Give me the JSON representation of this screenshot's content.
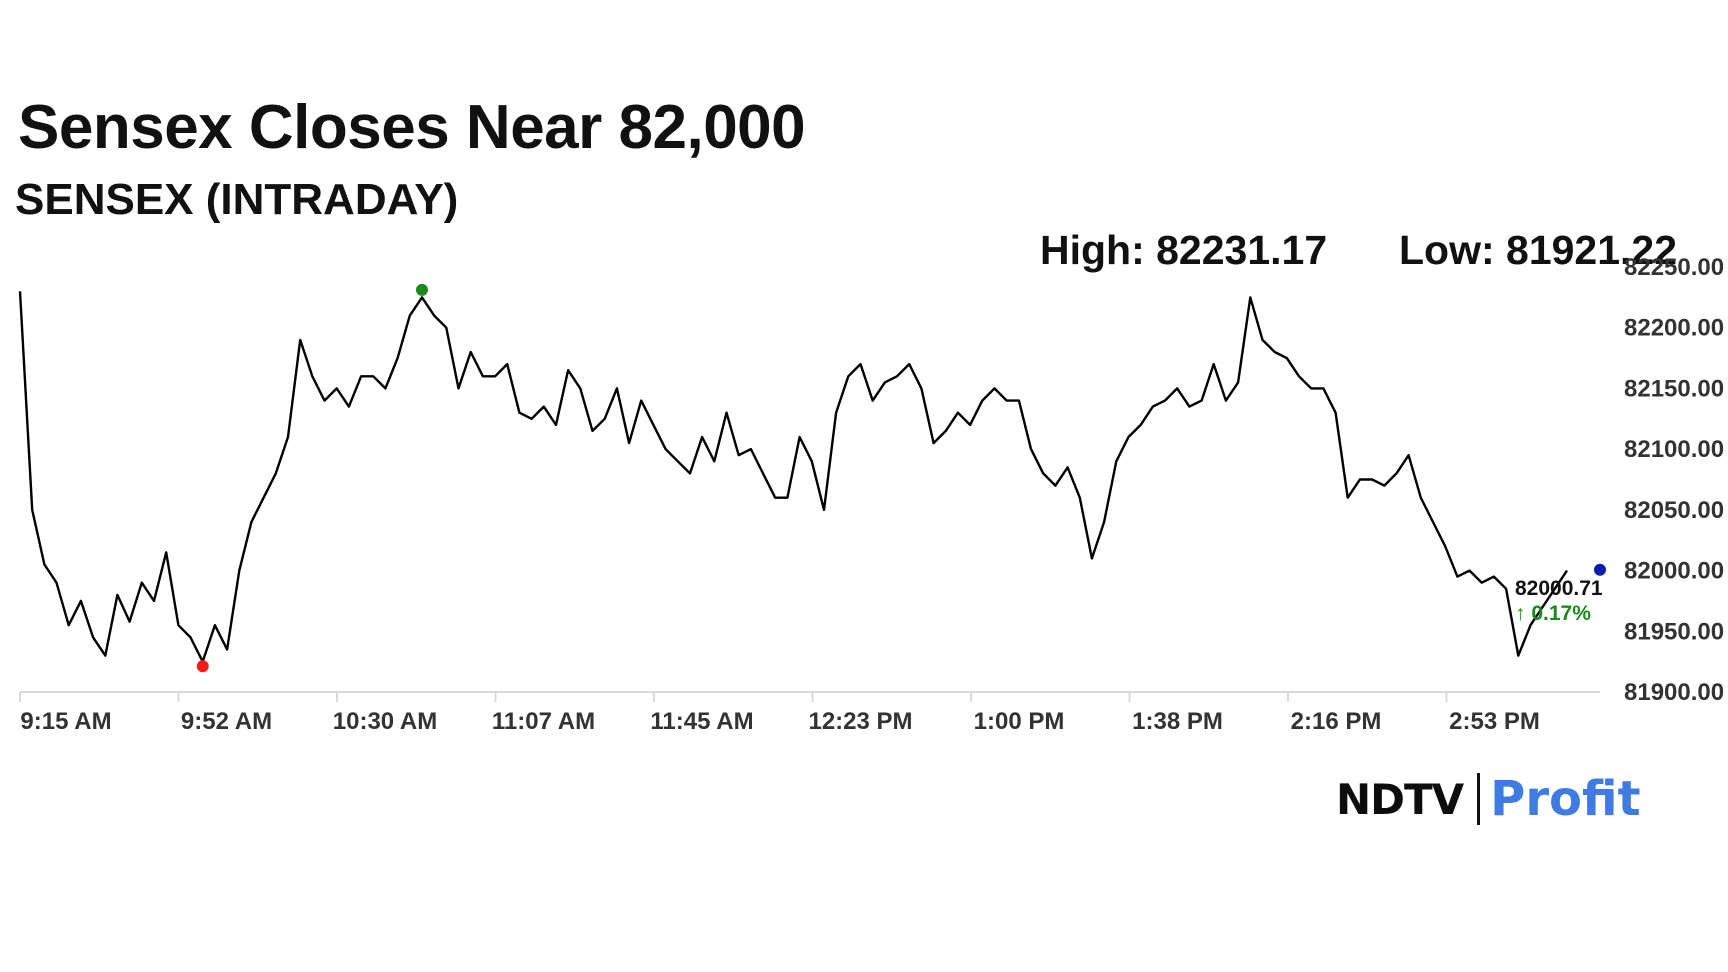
{
  "headline": "Sensex Closes Near 82,000",
  "subtitle": "SENSEX (INTRADAY)",
  "high_label": "High: 82231.17",
  "low_label": "Low: 81921.22",
  "last_price": "82000.71",
  "change": "0.17%",
  "change_arrow": "↑",
  "logo": {
    "brand": "NDTV",
    "product": "Profit"
  },
  "colors": {
    "line": "#000000",
    "high_dot": "#1a8a1a",
    "low_dot": "#ff1a1a",
    "last_dot": "#0a1fa8",
    "change": "#1a8a1a",
    "axis": "#d9d9d9"
  },
  "chart_data": {
    "type": "line",
    "title": "SENSEX (INTRADAY)",
    "xlabel": "",
    "ylabel": "",
    "ylim": [
      81900,
      82250
    ],
    "y_ticks": [
      "82250.00",
      "82200.00",
      "82150.00",
      "82100.00",
      "82050.00",
      "82000.00",
      "81950.00",
      "81900.00"
    ],
    "x_ticks": [
      "9:15 AM",
      "9:52 AM",
      "10:30 AM",
      "11:07 AM",
      "11:45 AM",
      "12:23 PM",
      "1:00 PM",
      "1:38 PM",
      "2:16 PM",
      "2:53 PM"
    ],
    "grid": false,
    "series": [
      {
        "x": [
          "9:15 AM",
          "9:16 AM",
          "9:18 AM",
          "9:20 AM",
          "9:22 AM",
          "9:24 AM",
          "9:26 AM",
          "9:28 AM",
          "9:30 AM",
          "9:32 AM",
          "9:34 AM",
          "9:36 AM",
          "9:38 AM",
          "9:40 AM",
          "9:42 AM",
          "9:44 AM",
          "9:46 AM",
          "9:48 AM",
          "9:50 AM",
          "9:52 AM",
          "9:54 AM",
          "9:56 AM",
          "9:58 AM",
          "10:00 AM",
          "10:02 AM",
          "10:04 AM",
          "10:06 AM",
          "10:08 AM",
          "10:10 AM",
          "10:12 AM",
          "10:14 AM",
          "10:16 AM",
          "10:18 AM",
          "10:20 AM",
          "10:22 AM",
          "10:24 AM",
          "10:26 AM",
          "10:28 AM",
          "10:30 AM",
          "10:33 AM",
          "10:36 AM",
          "10:39 AM",
          "10:42 AM",
          "10:45 AM",
          "10:48 AM",
          "10:51 AM",
          "10:54 AM",
          "10:57 AM",
          "11:00 AM",
          "11:03 AM",
          "11:07 AM",
          "11:12 AM",
          "11:17 AM",
          "11:22 AM",
          "11:27 AM",
          "11:32 AM",
          "11:37 AM",
          "11:42 AM",
          "11:45 AM",
          "11:50 AM",
          "11:55 AM",
          "12:00 PM",
          "12:05 PM",
          "12:10 PM",
          "12:15 PM",
          "12:20 PM",
          "12:23 PM",
          "12:25 PM",
          "12:28 PM",
          "12:31 PM",
          "12:34 PM",
          "12:37 PM",
          "12:40 PM",
          "12:43 PM",
          "12:46 PM",
          "12:49 PM",
          "12:52 PM",
          "12:55 PM",
          "1:00 PM",
          "1:04 PM",
          "1:08 PM",
          "1:12 PM",
          "1:16 PM",
          "1:20 PM",
          "1:24 PM",
          "1:28 PM",
          "1:32 PM",
          "1:35 PM",
          "1:38 PM",
          "1:41 PM",
          "1:44 PM",
          "1:47 PM",
          "1:50 PM",
          "1:53 PM",
          "1:56 PM",
          "1:59 PM",
          "2:02 PM",
          "2:05 PM",
          "2:08 PM",
          "2:11 PM",
          "2:14 PM",
          "2:16 PM",
          "2:18 PM",
          "2:20 PM",
          "2:23 PM",
          "2:26 PM",
          "2:29 PM",
          "2:32 PM",
          "2:35 PM",
          "2:38 PM",
          "2:41 PM",
          "2:44 PM",
          "2:47 PM",
          "2:50 PM",
          "2:53 PM",
          "2:56 PM",
          "2:59 PM",
          "3:02 PM",
          "3:05 PM",
          "3:08 PM",
          "3:11 PM",
          "3:14 PM",
          "3:17 PM",
          "3:20 PM",
          "3:23 PM",
          "3:26 PM",
          "3:29 PM",
          "3:30 PM"
        ],
        "values": [
          82230,
          82050,
          82005,
          81990,
          81955,
          81975,
          81945,
          81930,
          81980,
          81958,
          81990,
          81975,
          82015,
          81955,
          81945,
          81925,
          81955,
          81935,
          82000,
          82040,
          82060,
          82080,
          82110,
          82190,
          82160,
          82140,
          82150,
          82135,
          82160,
          82160,
          82150,
          82175,
          82210,
          82225,
          82210,
          82200,
          82150,
          82180,
          82160,
          82160,
          82170,
          82130,
          82125,
          82135,
          82120,
          82165,
          82150,
          82115,
          82125,
          82150,
          82105,
          82140,
          82120,
          82100,
          82090,
          82080,
          82110,
          82090,
          82130,
          82095,
          82100,
          82080,
          82060,
          82060,
          82110,
          82090,
          82050,
          82130,
          82160,
          82170,
          82140,
          82155,
          82160,
          82170,
          82150,
          82105,
          82115,
          82130,
          82120,
          82140,
          82150,
          82140,
          82140,
          82100,
          82080,
          82070,
          82085,
          82060,
          82010,
          82040,
          82090,
          82110,
          82120,
          82135,
          82140,
          82150,
          82135,
          82140,
          82170,
          82140,
          82155,
          82225,
          82190,
          82180,
          82175,
          82160,
          82150,
          82150,
          82130,
          82060,
          82075,
          82075,
          82070,
          82080,
          82095,
          82060,
          82040,
          82020,
          81995,
          82000,
          81990,
          81995,
          81985,
          81930,
          81955,
          81970,
          81985,
          82000
        ]
      }
    ],
    "high": 82231.17,
    "low": 81921.22,
    "last": 82000.71
  }
}
